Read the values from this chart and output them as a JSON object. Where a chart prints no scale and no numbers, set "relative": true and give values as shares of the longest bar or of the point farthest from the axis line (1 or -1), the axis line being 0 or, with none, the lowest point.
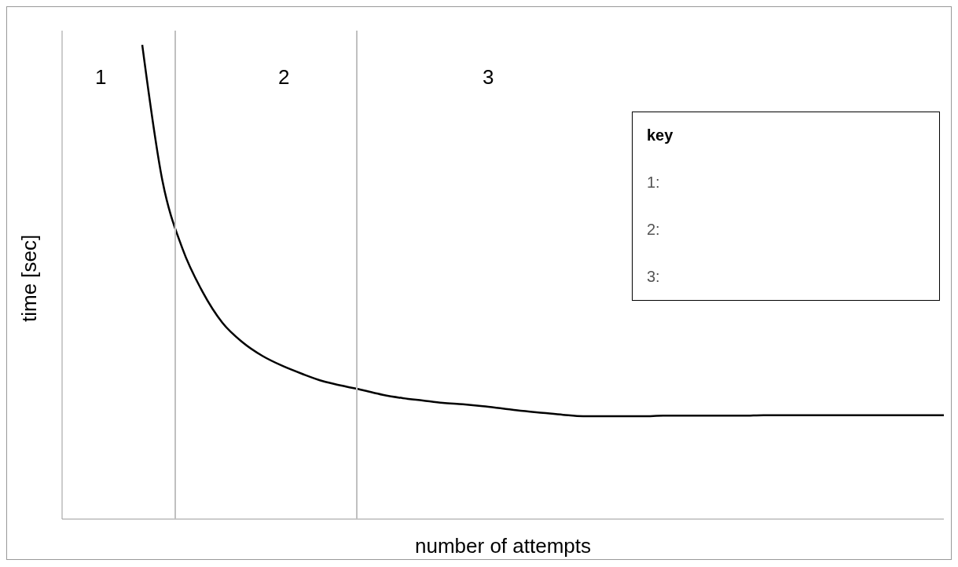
{
  "chart_data": {
    "type": "line",
    "relative": true,
    "xlabel": "number of attempts",
    "ylabel": "time [sec]",
    "categories": [
      null,
      null,
      null,
      null,
      null,
      null,
      null,
      null,
      null,
      null,
      null,
      null,
      null,
      null,
      null,
      null,
      null,
      null,
      null,
      null,
      null,
      null,
      null,
      null,
      null,
      null,
      null,
      null,
      null,
      null,
      null,
      null,
      null,
      null,
      null,
      null,
      null,
      null,
      null,
      null,
      null,
      null,
      null,
      null,
      null
    ],
    "series": [
      {
        "color": "#000000",
        "values": [
          null,
          null,
          null,
          null,
          1,
          0.715,
          0.571,
          0.48,
          0.414,
          0.373,
          0.344,
          0.323,
          0.306,
          0.291,
          0.281,
          0.272,
          0.262,
          0.255,
          0.25,
          0.245,
          0.242,
          0.238,
          0.233,
          0.228,
          0.224,
          0.22,
          0.217,
          0.217,
          0.217,
          0.217,
          0.218,
          0.218,
          0.218,
          0.218,
          0.218,
          0.219,
          0.219,
          0.219,
          0.219,
          0.219,
          0.219,
          0.219,
          0.219,
          0.219,
          0.219
        ]
      }
    ],
    "annotations": [
      "1",
      "2",
      "3",
      "key",
      "1:",
      "2:",
      "3:"
    ],
    "marker": "none",
    "line_style": "solid"
  }
}
